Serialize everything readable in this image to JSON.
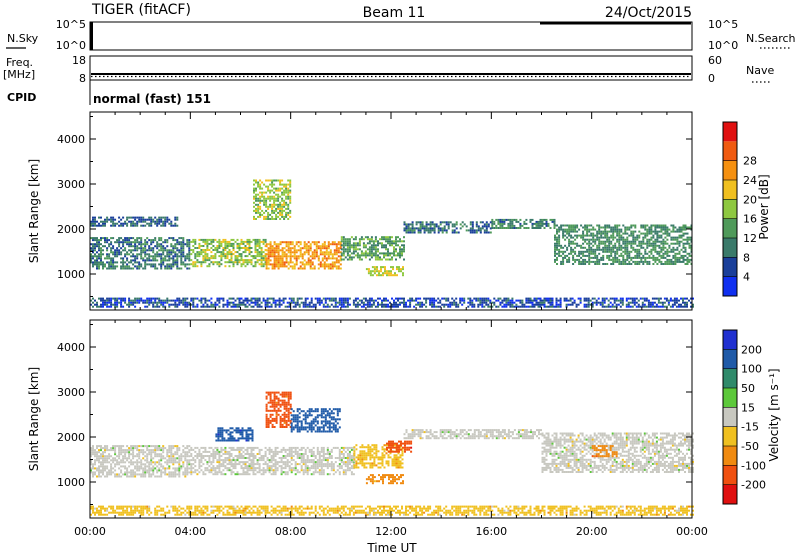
{
  "header": {
    "station": "TIGER (fitACF)",
    "beam": "Beam 11",
    "date": "24/Oct/2015"
  },
  "aux_panels": {
    "nsky": {
      "label": "N.Sky",
      "ticks": [
        "10^5",
        "10^0"
      ]
    },
    "nsearch": {
      "label": "N.Search",
      "ticks": [
        "10^5",
        "10^0"
      ]
    },
    "freq": {
      "label_line1": "Freq.",
      "label_line2": "[MHz]",
      "ticks": [
        "18",
        "8"
      ]
    },
    "nave": {
      "label": "Nave",
      "ticks": [
        "60",
        "0"
      ]
    },
    "cpid": {
      "label": "CPID",
      "value": "normal (fast) 151"
    }
  },
  "colors": {
    "power_scale": [
      "#1030f0",
      "#1a3f9a",
      "#3a7a6a",
      "#4f9a5a",
      "#8ec840",
      "#f0c020",
      "#f59010",
      "#f05a10",
      "#e01010"
    ],
    "velocity_scale": [
      "#2030d0",
      "#1f5aa8",
      "#2f8a6a",
      "#5cc83a",
      "#c8c8c0",
      "#f0c020",
      "#f08a10",
      "#f05010",
      "#e01010"
    ]
  },
  "chart_data": [
    {
      "type": "heatmap",
      "name": "power",
      "ylabel": "Slant Range [km]",
      "yticks": [
        1000,
        2000,
        3000,
        4000
      ],
      "ylim": [
        200,
        4600
      ],
      "xlim_hours": [
        0,
        24
      ],
      "colorbar": {
        "label": "Power [dB]",
        "levels": [
          0,
          4,
          8,
          12,
          16,
          20,
          24,
          28,
          32
        ],
        "ticklabels": [
          "4",
          "8",
          "12",
          "16",
          "20",
          "24",
          "28"
        ]
      },
      "regions": [
        {
          "t": [
            0.0,
            4.0
          ],
          "r": [
            1100,
            1800
          ],
          "v": 10
        },
        {
          "t": [
            4.0,
            7.0
          ],
          "r": [
            1150,
            1750
          ],
          "v": 18
        },
        {
          "t": [
            7.0,
            10.0
          ],
          "r": [
            1100,
            1700
          ],
          "v": 25
        },
        {
          "t": [
            10.0,
            12.5
          ],
          "r": [
            1300,
            1800
          ],
          "v": 14
        },
        {
          "t": [
            11.0,
            12.5
          ],
          "r": [
            950,
            1150
          ],
          "v": 20
        },
        {
          "t": [
            12.5,
            16.0
          ],
          "r": [
            1900,
            2150
          ],
          "v": 9
        },
        {
          "t": [
            16.0,
            18.5
          ],
          "r": [
            2000,
            2200
          ],
          "v": 11
        },
        {
          "t": [
            18.5,
            24.0
          ],
          "r": [
            1200,
            2100
          ],
          "v": 12
        },
        {
          "t": [
            0.0,
            24.0
          ],
          "r": [
            250,
            450
          ],
          "v": 6
        },
        {
          "t": [
            6.5,
            8.0
          ],
          "r": [
            2200,
            3100
          ],
          "v": 18
        },
        {
          "t": [
            0.0,
            3.5
          ],
          "r": [
            2050,
            2250
          ],
          "v": 8
        }
      ]
    },
    {
      "type": "heatmap",
      "name": "velocity",
      "ylabel": "Slant Range [km]",
      "yticks": [
        1000,
        2000,
        3000,
        4000
      ],
      "ylim": [
        200,
        4600
      ],
      "xlim_hours": [
        0,
        24
      ],
      "xticks": [
        "00:00",
        "04:00",
        "08:00",
        "12:00",
        "16:00",
        "20:00",
        "00:00"
      ],
      "xlabel": "Time UT",
      "colorbar": {
        "label": "Velocity [m s⁻¹]",
        "levels": [
          -250,
          -200,
          -100,
          -50,
          -15,
          15,
          50,
          100,
          200,
          250
        ],
        "ticklabels": [
          "200",
          "100",
          "50",
          "15",
          "-15",
          "-50",
          "-100",
          "-200"
        ]
      },
      "regions": [
        {
          "t": [
            0.0,
            4.0
          ],
          "r": [
            1100,
            1800
          ],
          "v": 0
        },
        {
          "t": [
            4.0,
            10.5
          ],
          "r": [
            1150,
            1750
          ],
          "v": 0
        },
        {
          "t": [
            10.5,
            12.5
          ],
          "r": [
            1300,
            1800
          ],
          "v": -40
        },
        {
          "t": [
            11.0,
            12.5
          ],
          "r": [
            950,
            1150
          ],
          "v": -70
        },
        {
          "t": [
            11.8,
            12.8
          ],
          "r": [
            1650,
            1900
          ],
          "v": -180
        },
        {
          "t": [
            12.5,
            18.0
          ],
          "r": [
            1950,
            2150
          ],
          "v": 0
        },
        {
          "t": [
            18.0,
            24.0
          ],
          "r": [
            1200,
            2100
          ],
          "v": 0
        },
        {
          "t": [
            0.0,
            24.0
          ],
          "r": [
            250,
            450
          ],
          "v": -30
        },
        {
          "t": [
            5.0,
            6.5
          ],
          "r": [
            1900,
            2200
          ],
          "v": 180
        },
        {
          "t": [
            7.0,
            8.0
          ],
          "r": [
            2200,
            3000
          ],
          "v": -120
        },
        {
          "t": [
            8.0,
            10.0
          ],
          "r": [
            2100,
            2600
          ],
          "v": 150
        },
        {
          "t": [
            20.0,
            21.0
          ],
          "r": [
            1550,
            1800
          ],
          "v": -90
        }
      ]
    }
  ]
}
